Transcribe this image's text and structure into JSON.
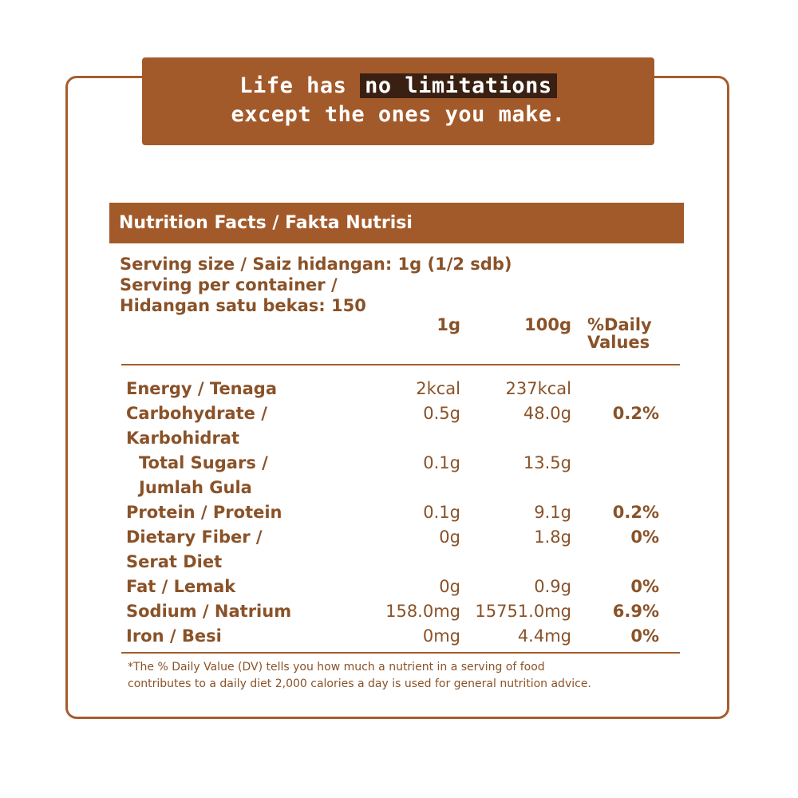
{
  "banner": {
    "line1_pre": "Life has ",
    "line1_highlight": "no limitations",
    "line2": "except the ones you make."
  },
  "table": {
    "title": "Nutrition Facts  / Fakta Nutrisi",
    "serving_size": "Serving size / Saiz hidangan: 1g (1/2 sdb)",
    "serving_per_container_1": "Serving per container /",
    "serving_per_container_2": "Hidangan satu bekas: 150",
    "col_1g": "1g",
    "col_100g": "100g",
    "col_dv_1": "%Daily",
    "col_dv_2": "Values",
    "rows": [
      {
        "name": "Energy / Tenaga",
        "v1": "2kcal",
        "v2": "237kcal",
        "dv": ""
      },
      {
        "name": "Carbohydrate /",
        "v1": "0.5g",
        "v2": "48.0g",
        "dv": "0.2%"
      },
      {
        "name": "Karbohidrat",
        "v1": "",
        "v2": "",
        "dv": ""
      },
      {
        "name": "Total Sugars /",
        "v1": "0.1g",
        "v2": "13.5g",
        "dv": ""
      },
      {
        "name": "Jumlah Gula",
        "v1": "",
        "v2": "",
        "dv": ""
      },
      {
        "name": "Protein / Protein",
        "v1": "0.1g",
        "v2": "9.1g",
        "dv": "0.2%"
      },
      {
        "name": "Dietary Fiber /",
        "v1": "0g",
        "v2": "1.8g",
        "dv": "0%"
      },
      {
        "name": "Serat Diet",
        "v1": "",
        "v2": "",
        "dv": ""
      },
      {
        "name": "Fat / Lemak",
        "v1": "0g",
        "v2": "0.9g",
        "dv": "0%"
      },
      {
        "name": "Sodium / Natrium",
        "v1": "158.0mg",
        "v2": "15751.0mg",
        "dv": "6.9%"
      },
      {
        "name": "Iron / Besi",
        "v1": "0mg",
        "v2": "4.4mg",
        "dv": "0%"
      }
    ],
    "footnote_1": "*The % Daily Value (DV) tells you how much a nutrient in a serving of food",
    "footnote_2": "contributes to a daily diet 2,000 calories a day is used for general nutrition advice."
  },
  "colors": {
    "brown": "#a35a2a",
    "text_brown": "#8a5228",
    "highlight_dark": "#3a2012"
  }
}
